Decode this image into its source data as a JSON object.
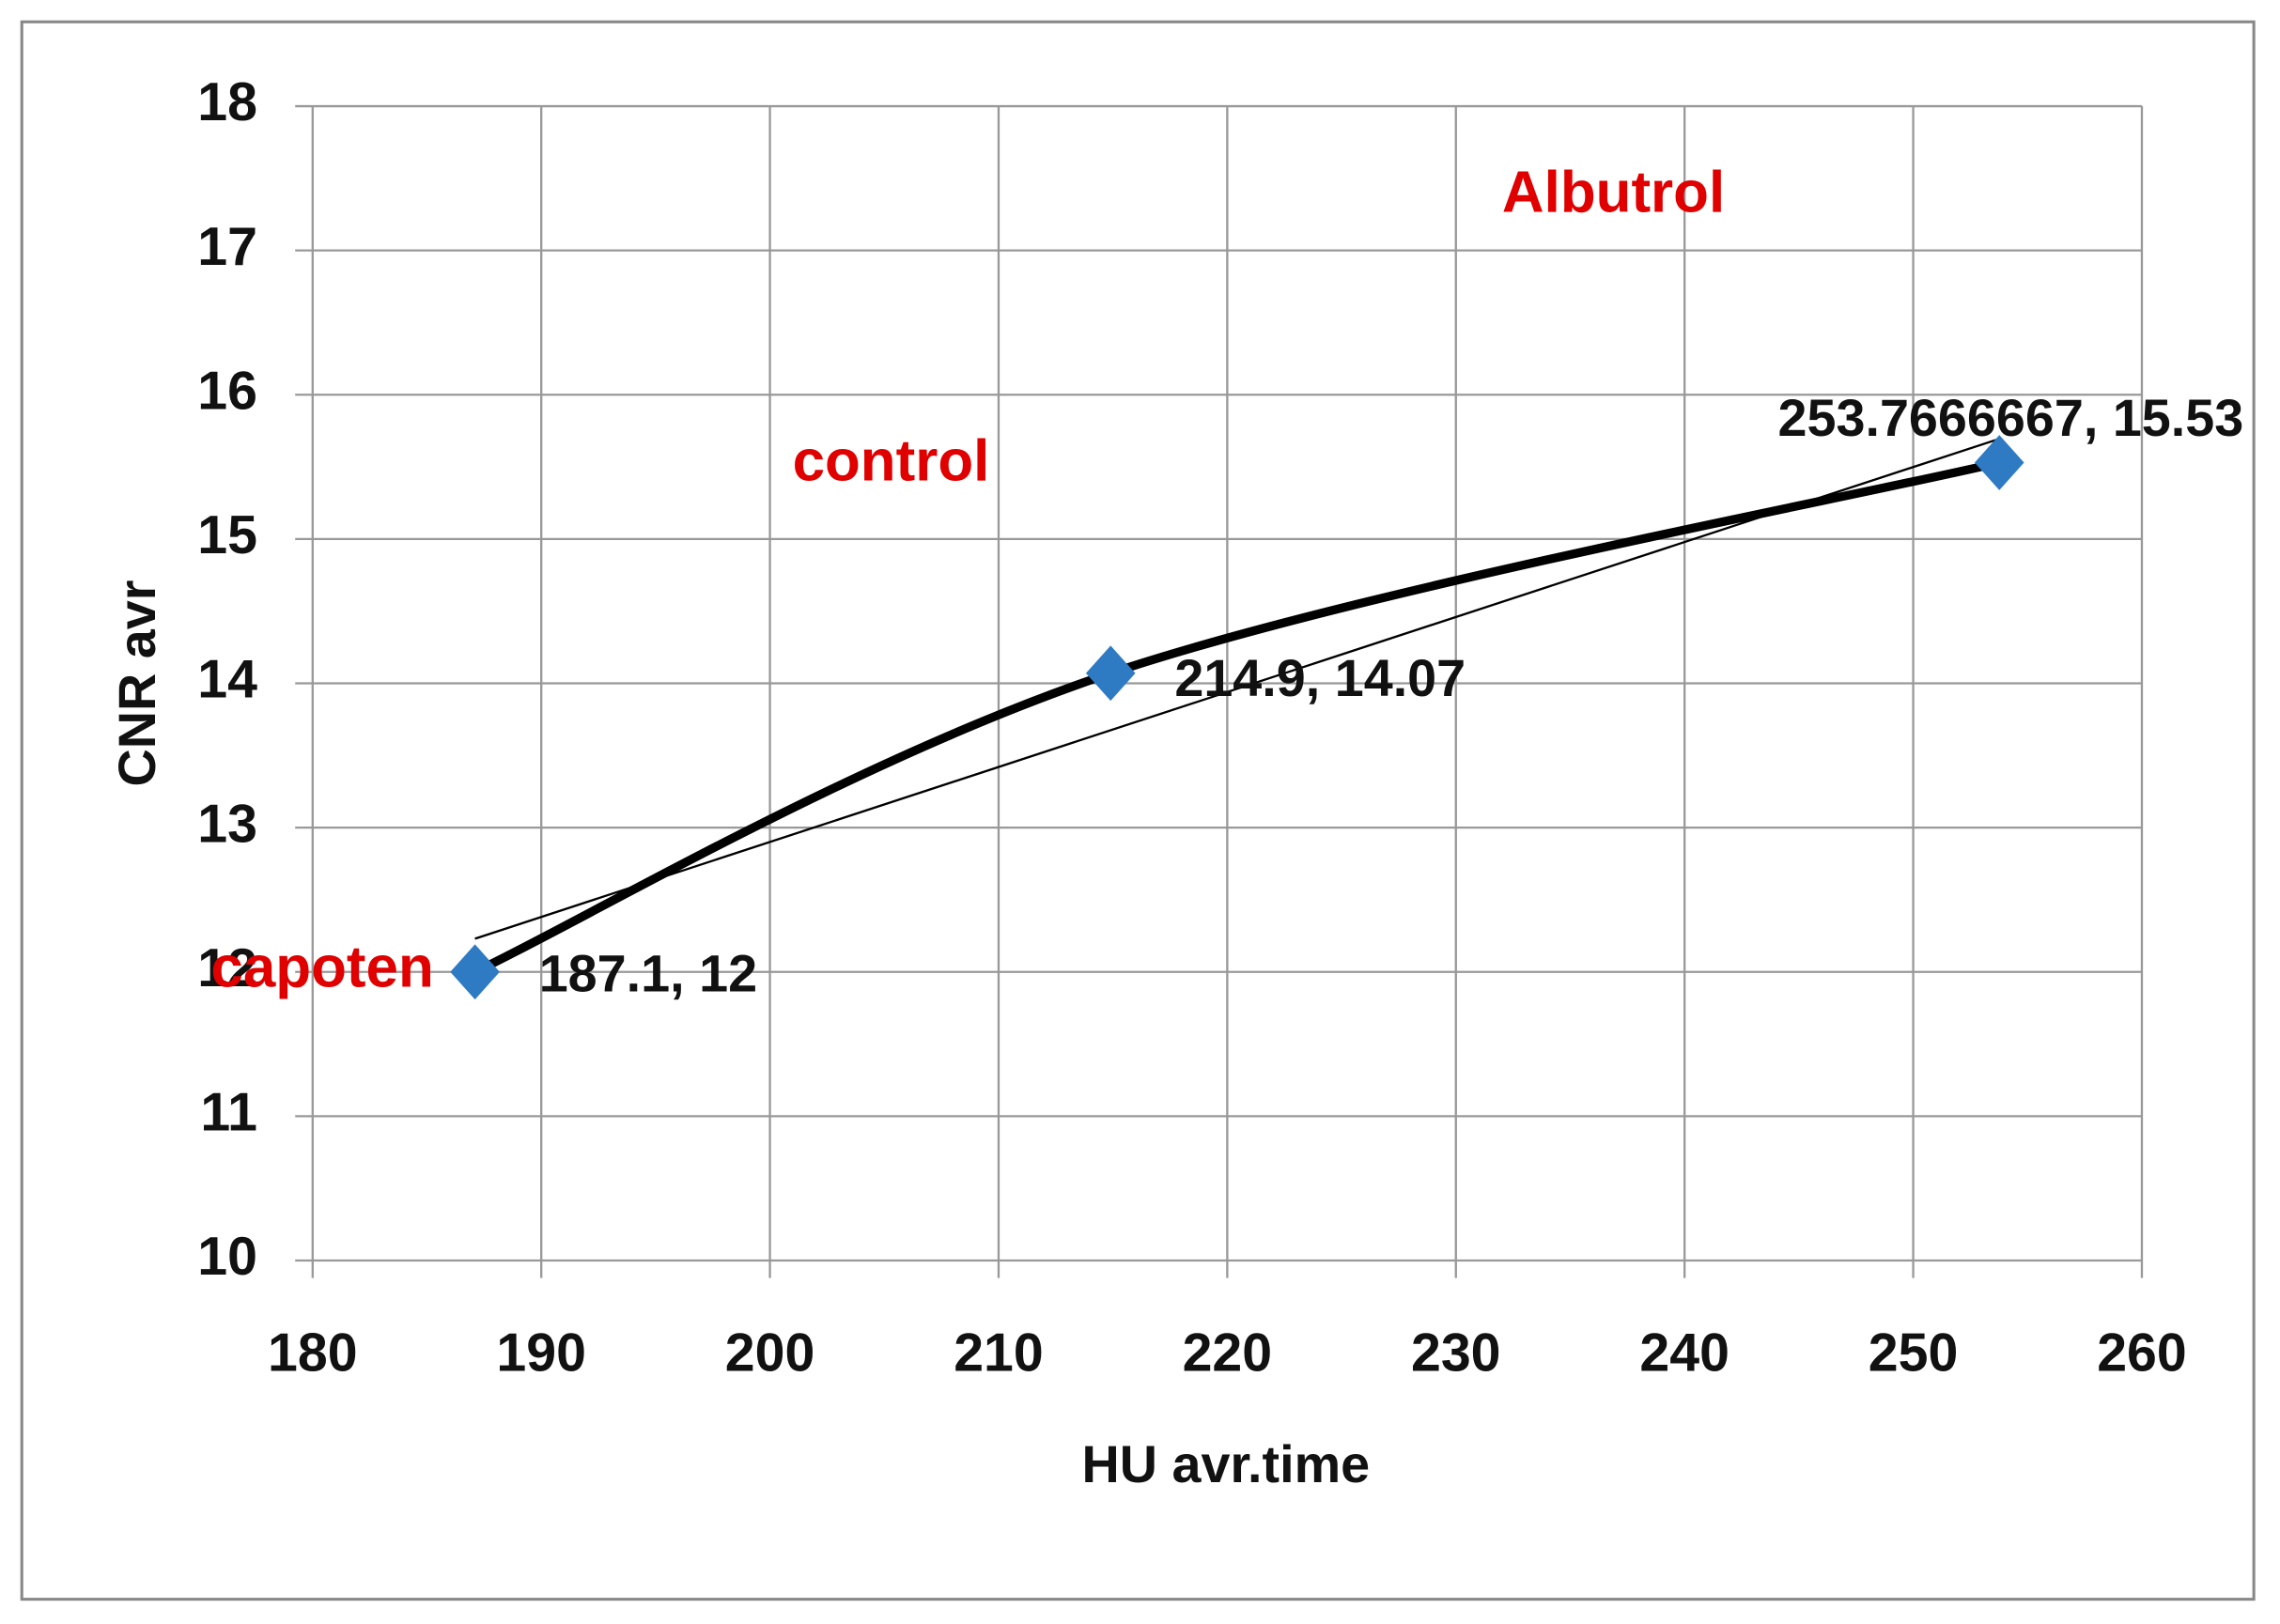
{
  "chart_data": {
    "type": "scatter",
    "x_label": "HU avr.time",
    "y_label": "CNR avr",
    "x": [
      187.1,
      214.9,
      253.7666667
    ],
    "series": [
      {
        "name": "CNR avr",
        "color": "#2e7bc4",
        "line_color": "#000000",
        "values": [
          12,
          14.07,
          15.53
        ],
        "value_labels": [
          "187.1, 12",
          "214.9, 14.07",
          "253.7666667, 15.53"
        ]
      }
    ],
    "trendline": "linear",
    "annotations": [
      "capoten",
      "control",
      "Albutrol"
    ],
    "xlim": [
      180,
      260
    ],
    "xticks": [
      180,
      190,
      200,
      210,
      220,
      230,
      240,
      250,
      260
    ],
    "ylim": [
      10,
      18
    ],
    "yticks": [
      10,
      11,
      12,
      13,
      14,
      15,
      16,
      17,
      18
    ],
    "grid": true
  }
}
